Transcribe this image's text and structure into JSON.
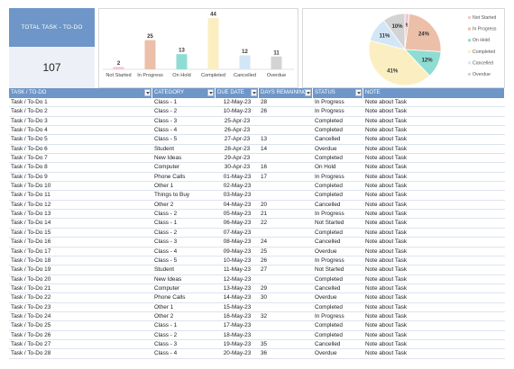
{
  "kpi": {
    "title": "TOTAL TASK - TO-DO",
    "value": "107"
  },
  "colors": {
    "header": "#6e96c8",
    "kpi_body": "#edf1f7",
    "status": {
      "Not Started": "#f4c7cf",
      "In Progress": "#ecbfa8",
      "On Hold": "#8fdcd2",
      "Completed": "#fbefc2",
      "Cancelled": "#d3e6f6",
      "Overdue": "#d3d3d3"
    }
  },
  "chart_data": [
    {
      "type": "bar",
      "categories": [
        "Not Started",
        "In Progress",
        "On Hold",
        "Completed",
        "Cancelled",
        "Overdue"
      ],
      "values": [
        2,
        25,
        13,
        44,
        12,
        11
      ],
      "title": "",
      "xlabel": "",
      "ylabel": "",
      "ylim": [
        0,
        44
      ],
      "grid": false,
      "data_labels": true
    },
    {
      "type": "pie",
      "categories": [
        "Not Started",
        "In Progress",
        "On Hold",
        "Completed",
        "Cancelled",
        "Overdue"
      ],
      "values": [
        2,
        24,
        12,
        41,
        11,
        10
      ],
      "unit": "%",
      "title": "",
      "legend": "right",
      "legend_entries": [
        "Not Started",
        "In Progress",
        "On Hold",
        "Completed",
        "Cancelled",
        "Overdue"
      ]
    }
  ],
  "table": {
    "columns": [
      "TASK / TO-DO",
      "CATEGORY",
      "DUE DATE",
      "DAYS REMAINING",
      "STATUS",
      "NOTE"
    ],
    "rows": [
      [
        "Task / To-Do 1",
        "Class - 1",
        "12-May-23",
        "28",
        "In Progress",
        "Note about Task"
      ],
      [
        "Task / To-Do 2",
        "Class - 2",
        "10-May-23",
        "26",
        "In Progress",
        "Note about Task"
      ],
      [
        "Task / To-Do 3",
        "Class - 3",
        "25-Apr-23",
        "",
        "Completed",
        "Note about Task"
      ],
      [
        "Task / To-Do 4",
        "Class - 4",
        "26-Apr-23",
        "",
        "Completed",
        "Note about Task"
      ],
      [
        "Task / To-Do 5",
        "Class - 5",
        "27-Apr-23",
        "13",
        "Cancelled",
        "Note about Task"
      ],
      [
        "Task / To-Do 6",
        "Student",
        "28-Apr-23",
        "14",
        "Overdue",
        "Note about Task"
      ],
      [
        "Task / To-Do 7",
        "New Ideas",
        "29-Apr-23",
        "",
        "Completed",
        "Note about Task"
      ],
      [
        "Task / To-Do 8",
        "Computer",
        "30-Apr-23",
        "16",
        "On Hold",
        "Note about Task"
      ],
      [
        "Task / To-Do 9",
        "Phone Calls",
        "01-May-23",
        "17",
        "In Progress",
        "Note about Task"
      ],
      [
        "Task / To-Do 10",
        "Other 1",
        "02-May-23",
        "",
        "Completed",
        "Note about Task"
      ],
      [
        "Task / To-Do 11",
        "Things to Buy",
        "03-May-23",
        "",
        "Completed",
        "Note about Task"
      ],
      [
        "Task / To-Do 12",
        "Other 2",
        "04-May-23",
        "20",
        "Cancelled",
        "Note about Task"
      ],
      [
        "Task / To-Do 13",
        "Class - 2",
        "05-May-23",
        "21",
        "In Progress",
        "Note about Task"
      ],
      [
        "Task / To-Do 14",
        "Class - 1",
        "06-May-23",
        "22",
        "Not Started",
        "Note about Task"
      ],
      [
        "Task / To-Do 15",
        "Class - 2",
        "07-May-23",
        "",
        "Completed",
        "Note about Task"
      ],
      [
        "Task / To-Do 16",
        "Class - 3",
        "08-May-23",
        "24",
        "Cancelled",
        "Note about Task"
      ],
      [
        "Task / To-Do 17",
        "Class - 4",
        "09-May-23",
        "25",
        "Overdue",
        "Note about Task"
      ],
      [
        "Task / To-Do 18",
        "Class - 5",
        "10-May-23",
        "26",
        "In Progress",
        "Note about Task"
      ],
      [
        "Task / To-Do 19",
        "Student",
        "11-May-23",
        "27",
        "Not Started",
        "Note about Task"
      ],
      [
        "Task / To-Do 20",
        "New Ideas",
        "12-May-23",
        "",
        "Completed",
        "Note about Task"
      ],
      [
        "Task / To-Do 21",
        "Computer",
        "13-May-23",
        "29",
        "Cancelled",
        "Note about Task"
      ],
      [
        "Task / To-Do 22",
        "Phone Calls",
        "14-May-23",
        "30",
        "Overdue",
        "Note about Task"
      ],
      [
        "Task / To-Do 23",
        "Other 1",
        "15-May-23",
        "",
        "Completed",
        "Note about Task"
      ],
      [
        "Task / To-Do 24",
        "Other 2",
        "16-May-23",
        "32",
        "In Progress",
        "Note about Task"
      ],
      [
        "Task / To-Do 25",
        "Class - 1",
        "17-May-23",
        "",
        "Completed",
        "Note about Task"
      ],
      [
        "Task / To-Do 26",
        "Class - 2",
        "18-May-23",
        "",
        "Completed",
        "Note about Task"
      ],
      [
        "Task / To-Do 27",
        "Class - 3",
        "19-May-23",
        "35",
        "Cancelled",
        "Note about Task"
      ],
      [
        "Task / To-Do 28",
        "Class - 4",
        "20-May-23",
        "36",
        "Overdue",
        "Note about Task"
      ]
    ]
  }
}
